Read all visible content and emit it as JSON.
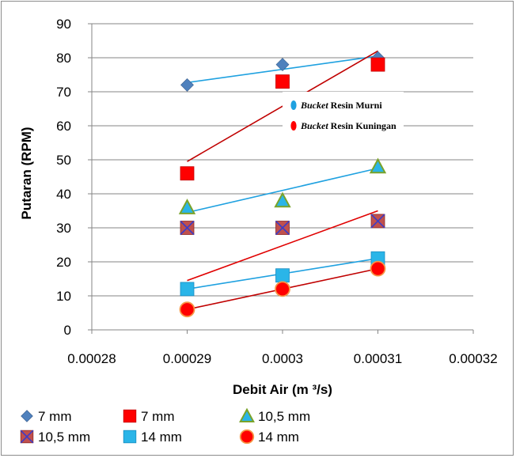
{
  "chart_data": {
    "type": "scatter",
    "xlabel": "Debit Air (m ³/s)",
    "ylabel": "Putaran (RPM)",
    "xlim": [
      0.00028,
      0.00032
    ],
    "ylim": [
      0,
      90
    ],
    "x_ticks": [
      "0.00028",
      "0.00029",
      "0.0003",
      "0.00031",
      "0.00032"
    ],
    "y_ticks": [
      "0",
      "10",
      "20",
      "30",
      "40",
      "50",
      "60",
      "70",
      "80",
      "90"
    ],
    "grid": "horizontal",
    "legend_position": "bottom",
    "series": [
      {
        "name": "7 mm",
        "marker": "diamond",
        "color": "#4f81bd",
        "trend_color": "#1fa1e0",
        "x": [
          0.00029,
          0.0003,
          0.00031
        ],
        "values": [
          72,
          78,
          80
        ],
        "trend": [
          72.7,
          80.5
        ]
      },
      {
        "name": "7 mm",
        "marker": "square",
        "color": "#ff0000",
        "trend_color": "#c00000",
        "x": [
          0.00029,
          0.0003,
          0.00031
        ],
        "values": [
          46,
          73,
          78
        ],
        "trend": [
          49.5,
          82
        ]
      },
      {
        "name": "10,5 mm",
        "marker": "triangle",
        "color": "#2ab5e8",
        "trend_color": "#1fa1e0",
        "x": [
          0.00029,
          0.0003,
          0.00031
        ],
        "values": [
          36,
          38,
          48
        ],
        "trend": [
          34.5,
          47.5
        ]
      },
      {
        "name": "10,5 mm",
        "marker": "xsquare",
        "color": "#c0504d",
        "trend_color": "#e00000",
        "x": [
          0.00029,
          0.0003,
          0.00031
        ],
        "values": [
          30,
          30,
          32
        ],
        "trend": [
          14.5,
          35
        ]
      },
      {
        "name": "14 mm",
        "marker": "square",
        "color": "#2ab5e8",
        "trend_color": "#1fa1e0",
        "x": [
          0.00029,
          0.0003,
          0.00031
        ],
        "values": [
          12,
          16,
          21
        ],
        "trend": [
          12,
          21
        ]
      },
      {
        "name": "14 mm",
        "marker": "circle",
        "color": "#ff0000",
        "trend_color": "#c00000",
        "x": [
          0.00029,
          0.0003,
          0.00031
        ],
        "values": [
          6,
          12,
          18
        ],
        "trend": [
          6,
          18
        ]
      }
    ],
    "inset_legend": [
      {
        "italic": "Bucket",
        "rest": " Resin Murni",
        "color": "#1fa1e0"
      },
      {
        "italic": "Bucket",
        "rest": " Resin Kuningan",
        "color": "#ff0000"
      }
    ]
  }
}
